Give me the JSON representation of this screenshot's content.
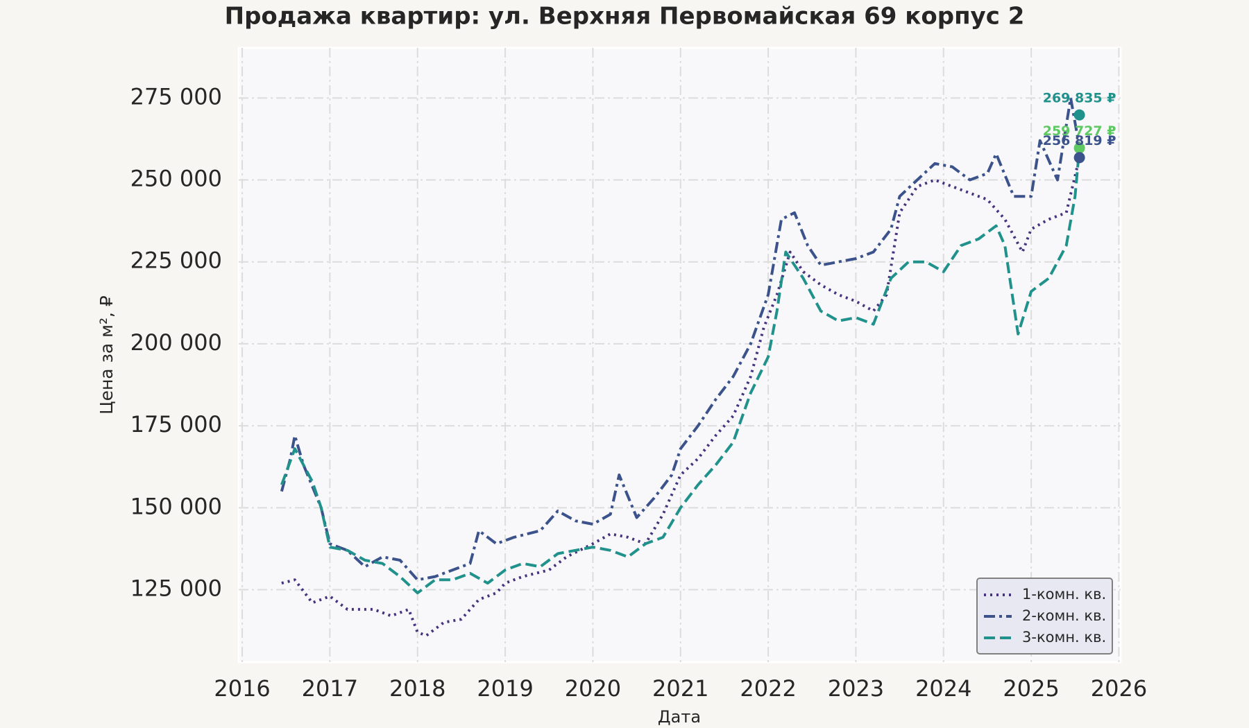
{
  "chart_data": {
    "type": "line",
    "title": "Продажа квартир: ул. Верхняя Первомайская 69 корпус 2",
    "x_label": "Дата",
    "y_label": "Цена за м², ₽",
    "xlim": [
      2015.96,
      2026.02
    ],
    "ylim": [
      102900,
      290300
    ],
    "xticks": [
      2016,
      2017,
      2018,
      2019,
      2020,
      2021,
      2022,
      2023,
      2024,
      2025,
      2026
    ],
    "yticks": [
      {
        "value": 125000,
        "label": "125 000"
      },
      {
        "value": 150000,
        "label": "150 000"
      },
      {
        "value": 175000,
        "label": "175 000"
      },
      {
        "value": 200000,
        "label": "200 000"
      },
      {
        "value": 225000,
        "label": "225 000"
      },
      {
        "value": 250000,
        "label": "250 000"
      },
      {
        "value": 275000,
        "label": "275 000"
      }
    ],
    "grid": true,
    "legend_loc": "lower right",
    "series": [
      {
        "name": "1-комн. кв.",
        "color": "#46327e",
        "linestyle": "dotted",
        "x": [
          2016.45,
          2016.6,
          2016.8,
          2017.0,
          2017.2,
          2017.5,
          2017.7,
          2017.9,
          2018.0,
          2018.1,
          2018.3,
          2018.5,
          2018.7,
          2018.9,
          2019.0,
          2019.2,
          2019.5,
          2019.7,
          2020.0,
          2020.2,
          2020.4,
          2020.6,
          2020.8,
          2021.0,
          2021.2,
          2021.4,
          2021.6,
          2021.8,
          2021.95,
          2022.1,
          2022.25,
          2022.4,
          2022.6,
          2022.8,
          2023.0,
          2023.2,
          2023.35,
          2023.5,
          2023.7,
          2023.9,
          2024.1,
          2024.3,
          2024.5,
          2024.7,
          2024.9,
          2025.0,
          2025.2,
          2025.4,
          2025.55
        ],
        "values": [
          127000,
          128000,
          121000,
          123000,
          119000,
          119000,
          117000,
          119000,
          112000,
          111000,
          115000,
          116000,
          122000,
          124000,
          127000,
          129000,
          131000,
          135000,
          139000,
          142000,
          141000,
          139000,
          148000,
          160000,
          165000,
          172000,
          178000,
          190000,
          205000,
          215000,
          228000,
          222000,
          218000,
          215000,
          213000,
          210000,
          215000,
          240000,
          248000,
          250000,
          248000,
          246000,
          244000,
          238000,
          228000,
          235000,
          238000,
          240000,
          256819
        ]
      },
      {
        "name": "2-комн. кв.",
        "color": "#3b528b",
        "linestyle": "dashdot",
        "x": [
          2016.45,
          2016.55,
          2016.6,
          2016.7,
          2016.9,
          2017.0,
          2017.2,
          2017.4,
          2017.6,
          2017.8,
          2018.0,
          2018.2,
          2018.4,
          2018.6,
          2018.7,
          2018.9,
          2019.1,
          2019.4,
          2019.6,
          2019.8,
          2020.0,
          2020.2,
          2020.3,
          2020.5,
          2020.7,
          2020.9,
          2021.0,
          2021.2,
          2021.4,
          2021.6,
          2021.8,
          2022.0,
          2022.15,
          2022.3,
          2022.45,
          2022.6,
          2022.8,
          2023.0,
          2023.2,
          2023.4,
          2023.5,
          2023.7,
          2023.9,
          2024.1,
          2024.3,
          2024.5,
          2024.6,
          2024.8,
          2025.0,
          2025.1,
          2025.3,
          2025.45,
          2025.55
        ],
        "values": [
          155000,
          165000,
          172000,
          163000,
          150000,
          139000,
          137000,
          132000,
          135000,
          134000,
          128000,
          129000,
          131000,
          133000,
          143000,
          139000,
          141000,
          143000,
          149000,
          146000,
          145000,
          148000,
          160000,
          147000,
          153000,
          160000,
          168000,
          175000,
          183000,
          190000,
          200000,
          215000,
          238000,
          240000,
          230000,
          224000,
          225000,
          226000,
          228000,
          235000,
          245000,
          250000,
          255000,
          254000,
          250000,
          252000,
          258000,
          245000,
          245000,
          262000,
          250000,
          275000,
          260000
        ]
      },
      {
        "name": "3-комн. кв.",
        "color": "#21918c",
        "linestyle": "dashed",
        "x": [
          2016.45,
          2016.6,
          2016.8,
          2016.9,
          2017.0,
          2017.2,
          2017.4,
          2017.6,
          2017.8,
          2018.0,
          2018.2,
          2018.4,
          2018.6,
          2018.8,
          2019.0,
          2019.2,
          2019.4,
          2019.6,
          2019.8,
          2020.0,
          2020.2,
          2020.4,
          2020.6,
          2020.8,
          2021.0,
          2021.2,
          2021.4,
          2021.6,
          2021.8,
          2022.0,
          2022.1,
          2022.2,
          2022.4,
          2022.6,
          2022.8,
          2023.0,
          2023.2,
          2023.4,
          2023.6,
          2023.8,
          2024.0,
          2024.2,
          2024.4,
          2024.6,
          2024.7,
          2024.85,
          2025.0,
          2025.2,
          2025.4,
          2025.5,
          2025.55
        ],
        "values": [
          157000,
          168000,
          158000,
          150000,
          138000,
          137000,
          134000,
          133000,
          129000,
          124000,
          128000,
          128000,
          130000,
          127000,
          131000,
          133000,
          132000,
          136000,
          137000,
          138000,
          137000,
          135000,
          139000,
          141000,
          150000,
          157000,
          163000,
          170000,
          185000,
          196000,
          210000,
          228000,
          220000,
          210000,
          207000,
          208000,
          206000,
          220000,
          225000,
          225000,
          222000,
          230000,
          232000,
          236000,
          230000,
          203000,
          216000,
          220000,
          230000,
          245000,
          259727
        ]
      }
    ],
    "annotations": [
      {
        "label": "269 835 ₽",
        "x": 2025.55,
        "y": 269835,
        "color": "#21918c"
      },
      {
        "label": "259 727 ₽",
        "x": 2025.55,
        "y": 259727,
        "color": "#5ec962"
      },
      {
        "label": "256 819 ₽",
        "x": 2025.55,
        "y": 256819,
        "color": "#3b528b"
      }
    ]
  }
}
